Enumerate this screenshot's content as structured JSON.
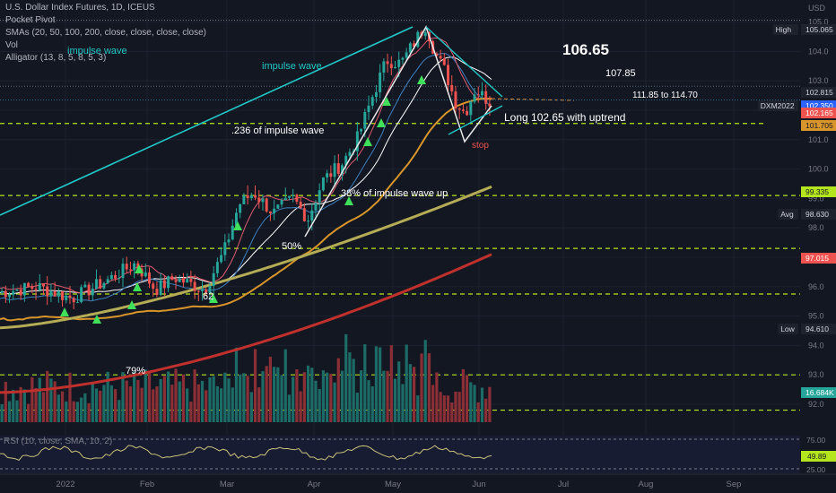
{
  "header": {
    "title": "U.S. Dollar Index Futures, 1D, ICEUS",
    "indicators": [
      "Pocket Pivot",
      "SMAs (20, 50, 100, 200, close, close, close, close)",
      "Vol",
      "Alligator (13, 8, 5, 8, 5, 3)"
    ],
    "legend_text": "impulse wave"
  },
  "annotations": {
    "target_1": "106.65",
    "target_2": "107.85",
    "target_3": "111.85 to  114.70",
    "long": "Long 102.65 with uptrend",
    "stop": "stop",
    "impulse": "impulse wave",
    "fib_236": ".236 of impulse wave",
    "fib_38": "38% of impulse wave up",
    "fib_50": "50%",
    "fib_62": "62",
    "fib_79": "79%"
  },
  "colors": {
    "bg": "#131722",
    "up": "#26a69a",
    "down": "#ef5350",
    "sma20": "#ffffff",
    "sma50": "#d8952b",
    "sma100": "#b5ac56",
    "sma200": "#c0302c",
    "dashed": "#b5e61d",
    "impulse": "#22c7c7",
    "pivot": "#3fe05a"
  },
  "chart_data": {
    "type": "candlestick",
    "instrument": "U.S. Dollar Index Futures",
    "interval": "1D",
    "y_axis_unit": "USD",
    "ylim": [
      91.5,
      105.5
    ],
    "x_ticks": [
      "2022",
      "Feb",
      "Mar",
      "Apr",
      "May",
      "Jun",
      "Jul",
      "Aug",
      "Sep"
    ],
    "y_ticks": [
      92.0,
      93.0,
      94.0,
      95.0,
      96.0,
      97.0,
      98.0,
      99.0,
      100.0,
      101.0,
      102.0,
      103.0,
      104.0,
      105.0
    ],
    "price_labels": [
      {
        "label": "High",
        "value": 105.065
      },
      {
        "label": "",
        "value": 102.815
      },
      {
        "label": "DXM2022",
        "value": 102.35
      },
      {
        "label": "",
        "value": 102.165
      },
      {
        "label": "",
        "value": 101.705
      },
      {
        "label": "",
        "value": 99.335
      },
      {
        "label": "Avg",
        "value": 98.63
      },
      {
        "label": "",
        "value": 97.015
      },
      {
        "label": "Low",
        "value": 94.61
      },
      {
        "label": "",
        "value": "16.684K"
      }
    ],
    "levels": [
      101.55,
      99.1,
      97.3,
      95.75,
      93.0,
      91.8
    ],
    "targets": [
      106.65,
      107.85,
      111.85,
      114.7
    ],
    "entry": 102.65,
    "rsi": {
      "label": "RSI (10, close, SMA, 10, 2)",
      "ticks": [
        "75.00",
        "25.00"
      ],
      "value": "49.89"
    }
  }
}
